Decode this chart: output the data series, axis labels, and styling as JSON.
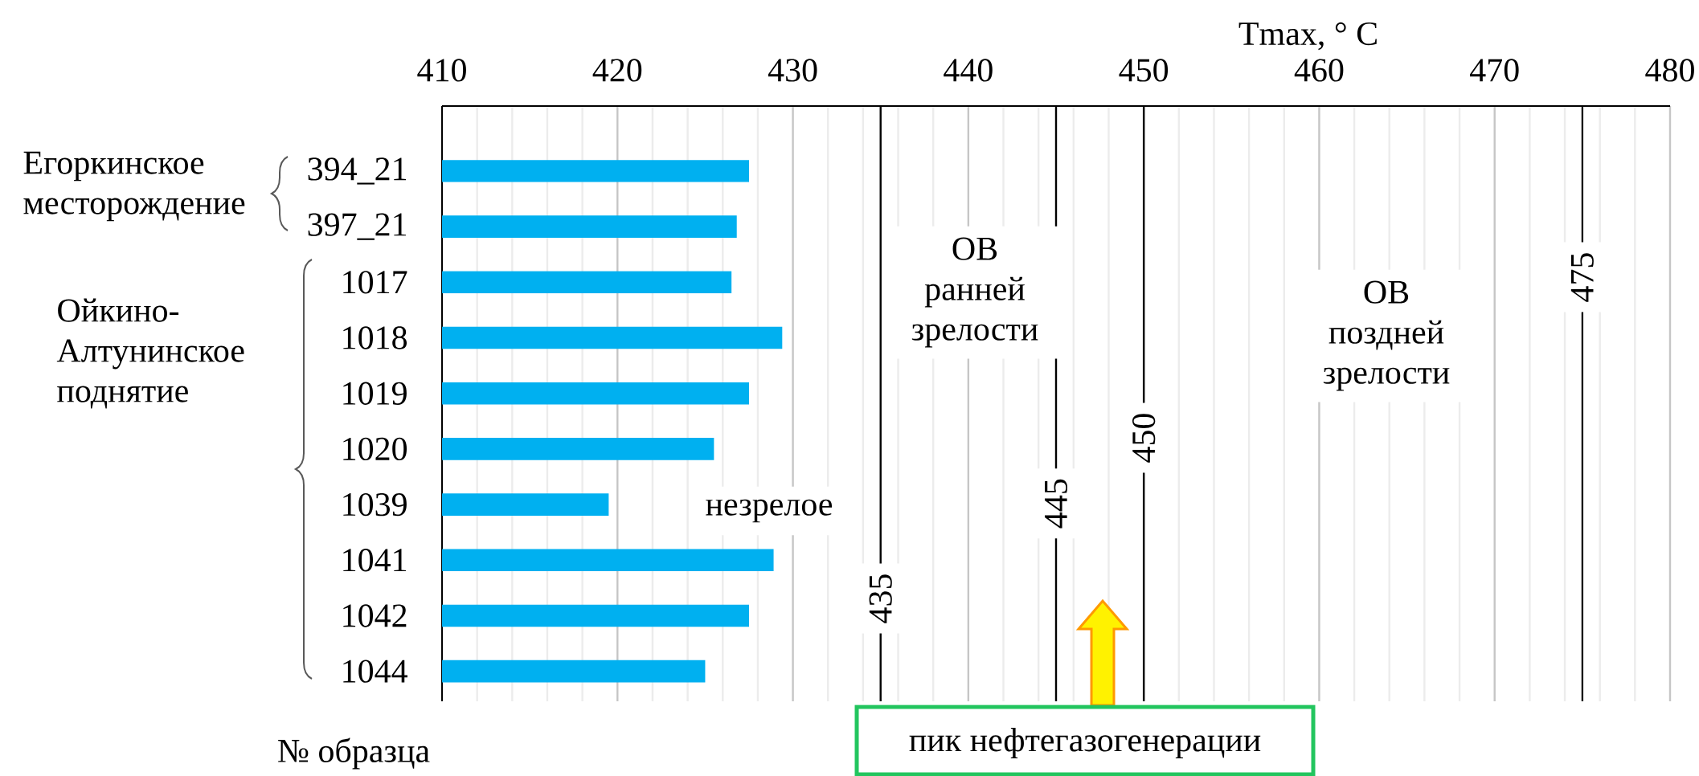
{
  "chart_data": {
    "type": "bar",
    "orientation": "horizontal",
    "xlabel": "Tmax, ° C",
    "ylabel": "№ образца",
    "categories": [
      "394_21",
      "397_21",
      "1017",
      "1018",
      "1019",
      "1020",
      "1039",
      "1041",
      "1042",
      "1044"
    ],
    "values": [
      427.5,
      426.8,
      426.5,
      429.4,
      427.5,
      425.5,
      419.5,
      428.9,
      427.5,
      425.0
    ],
    "color": "#00b0f0",
    "xlim": [
      410,
      480
    ],
    "xticks": [
      410,
      420,
      430,
      440,
      450,
      460,
      470,
      480
    ],
    "grid": "x",
    "ref_lines": [
      {
        "axis": "x",
        "value": 435,
        "label": "435",
        "color": "#000000"
      },
      {
        "axis": "x",
        "value": 445,
        "label": "445",
        "color": "#000000"
      },
      {
        "axis": "x",
        "value": 450,
        "label": "450",
        "color": "#000000"
      },
      {
        "axis": "x",
        "value": 475,
        "label": "475",
        "color": "#000000"
      }
    ],
    "annotations": [
      "незрелое",
      "ОВ ранней зрелости",
      "ОВ поздней зрелости",
      "пик нефтегазогенерации",
      "Егоркинское месторождение",
      "Ойкино-Алтунинское поднятие"
    ]
  }
}
